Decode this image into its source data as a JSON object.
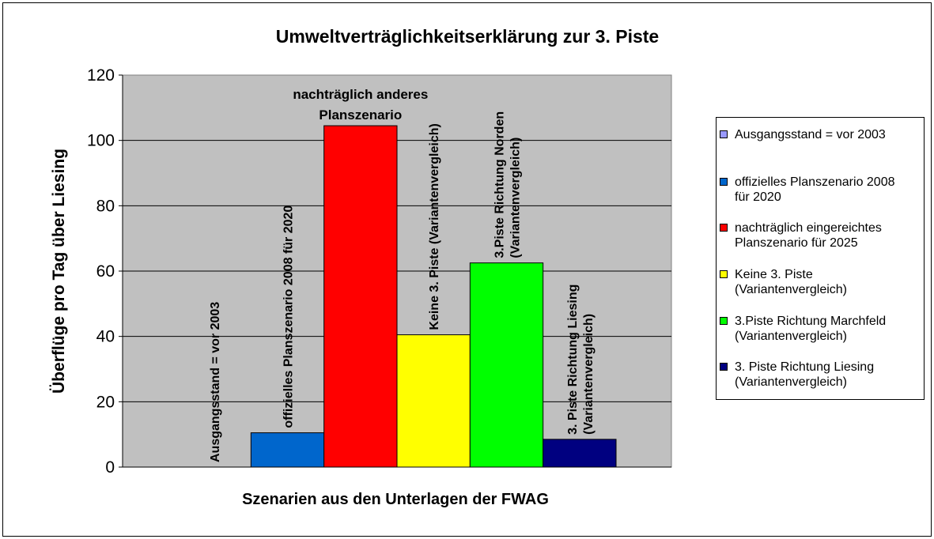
{
  "chart_data": {
    "type": "bar",
    "title": "Umweltverträglichkeitserklärung zur 3. Piste",
    "xlabel": "Szenarien aus den Unterlagen der FWAG",
    "ylabel": "Überflüge pro Tag über Liesing",
    "ylim": [
      0,
      120
    ],
    "yticks": [
      0,
      20,
      40,
      60,
      80,
      100,
      120
    ],
    "grid": true,
    "legend_position": "right",
    "series": [
      {
        "name": "Ausgangsstand = vor 2003",
        "value": 0,
        "color": "#9999FF",
        "data_label": [
          "Ausgangsstand = vor 2003"
        ],
        "label_orientation": "vertical"
      },
      {
        "name": "offizielles Planszenario 2008 für 2020",
        "value": 10.5,
        "color": "#0066CC",
        "data_label": [
          "offizielles Planszenario 2008 für 2020"
        ],
        "label_orientation": "vertical"
      },
      {
        "name": "nachträglich eingereichtes Planszenario für 2025",
        "value": 104.5,
        "color": "#FF0000",
        "data_label": [
          "nachträglich anderes",
          "Planszenario"
        ],
        "label_orientation": "horizontal"
      },
      {
        "name": "Keine 3. Piste (Variantenvergleich)",
        "value": 40.5,
        "color": "#FFFF00",
        "data_label": [
          "Keine 3. Piste (Variantenvergleich)"
        ],
        "label_orientation": "vertical"
      },
      {
        "name": "3.Piste Richtung Marchfeld (Variantenvergleich)",
        "value": 62.5,
        "color": "#00FF00",
        "data_label": [
          "3.Piste Richtung Norden",
          "(Variantenvergleich)"
        ],
        "label_orientation": "vertical"
      },
      {
        "name": "3. Piste Richtung Liesing (Variantenvergleich)",
        "value": 8.5,
        "color": "#000080",
        "data_label": [
          "3. Piste Richtung Liesing",
          "(Variantenvergleich)"
        ],
        "label_orientation": "vertical"
      }
    ],
    "legend": [
      {
        "lines": [
          "Ausgangsstand = vor 2003"
        ],
        "color": "#9999FF"
      },
      {
        "lines": [
          "offizielles Planszenario 2008",
          "für 2020"
        ],
        "color": "#0066CC"
      },
      {
        "lines": [
          "nachträglich eingereichtes",
          "Planszenario für 2025"
        ],
        "color": "#FF0000"
      },
      {
        "lines": [
          "Keine 3. Piste",
          "(Variantenvergleich)"
        ],
        "color": "#FFFF00"
      },
      {
        "lines": [
          "3.Piste Richtung Marchfeld",
          "(Variantenvergleich)"
        ],
        "color": "#00FF00"
      },
      {
        "lines": [
          "3. Piste Richtung Liesing",
          "(Variantenvergleich)"
        ],
        "color": "#000080"
      }
    ],
    "plot_background": "#C0C0C0"
  }
}
